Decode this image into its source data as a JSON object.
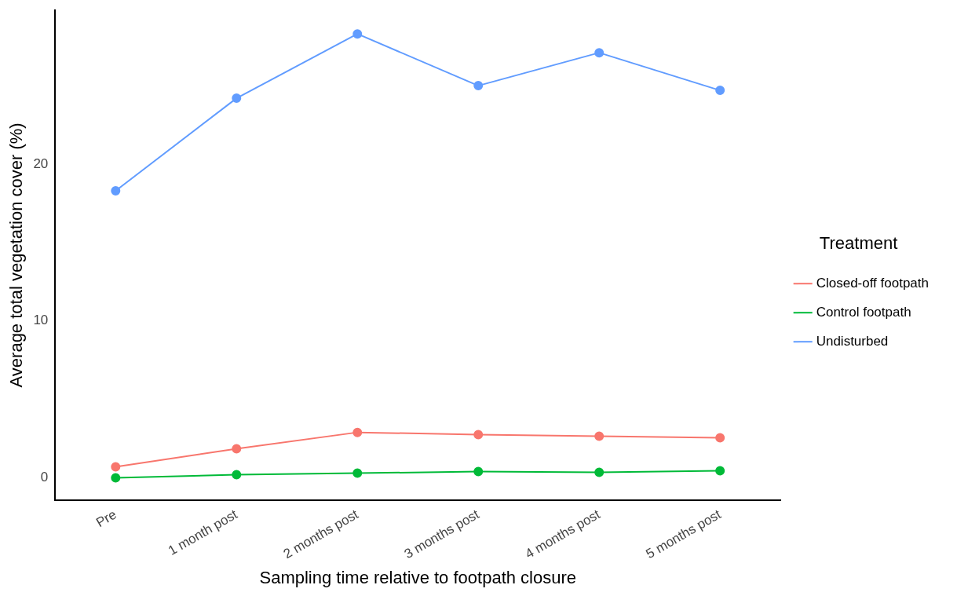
{
  "chart_data": {
    "type": "line",
    "xlabel": "Sampling time relative to footpath closure",
    "ylabel": "Average total vegetation cover (%)",
    "legend_title": "Treatment",
    "categories": [
      "Pre",
      "1 month post",
      "2 months post",
      "3 months post",
      "4 months post",
      "5 months post"
    ],
    "series": [
      {
        "name": "Closed-off footpath",
        "color": "#f8766d",
        "values": [
          0.7,
          1.86,
          2.9,
          2.76,
          2.66,
          2.56
        ]
      },
      {
        "name": "Control footpath",
        "color": "#00ba38",
        "values": [
          0,
          0.2,
          0.3,
          0.4,
          0.35,
          0.45
        ]
      },
      {
        "name": "Undisturbed",
        "color": "#619cff",
        "values": [
          18.3,
          24.2,
          28.3,
          25.0,
          27.1,
          24.7
        ]
      }
    ],
    "ylim": [
      -1.4,
      29.8
    ],
    "yticks": [
      0,
      10,
      20
    ],
    "grid": false,
    "legend": "right",
    "marker": "circle",
    "line_style": "solid"
  }
}
